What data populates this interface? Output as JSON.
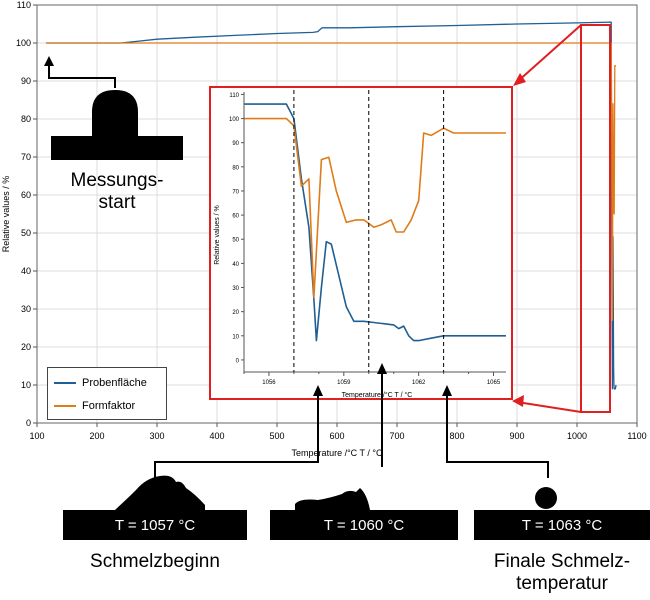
{
  "chart_data": [
    {
      "type": "line",
      "xlabel": "Temperature /°C T / °C",
      "ylabel": "Relative values / %",
      "xlim": [
        100,
        1100
      ],
      "ylim": [
        0,
        110
      ],
      "x_ticks": [
        100,
        200,
        300,
        400,
        500,
        600,
        700,
        800,
        900,
        1000,
        1100
      ],
      "y_ticks": [
        0,
        10,
        20,
        30,
        40,
        50,
        60,
        70,
        80,
        90,
        100,
        110
      ],
      "grid": true,
      "legend_position": "bottom-left",
      "series": [
        {
          "name": "Probenfläche",
          "color": "#1f5f94",
          "x": [
            115,
            240,
            270,
            300,
            360,
            430,
            500,
            560,
            568,
            575,
            620,
            700,
            800,
            900,
            1000,
            1057,
            1058,
            1059,
            1060,
            1061,
            1061.5,
            1062,
            1063,
            1064,
            1065
          ],
          "y": [
            100,
            100,
            100.5,
            101,
            101.5,
            102,
            102.5,
            102.8,
            103,
            104,
            104,
            104.3,
            104.6,
            105,
            105.3,
            105.5,
            45,
            9,
            49,
            15,
            10,
            9,
            9,
            9,
            10
          ]
        },
        {
          "name": "Formfaktor",
          "color": "#e07b1a",
          "x": [
            115,
            200,
            300,
            400,
            500,
            600,
            700,
            800,
            900,
            1000,
            1057,
            1058,
            1059,
            1060,
            1061,
            1062,
            1063,
            1064,
            1065
          ],
          "y": [
            100,
            100,
            100,
            100,
            100,
            100,
            100,
            100,
            100,
            100,
            100,
            73,
            27,
            84,
            56,
            55,
            94,
            94,
            94
          ]
        }
      ]
    },
    {
      "type": "line",
      "xlabel": "Temperature /°C T / °C",
      "ylabel": "Relative values / %",
      "xlim": [
        1055,
        1065.5
      ],
      "ylim": [
        -5,
        111
      ],
      "x_ticks": [
        1056,
        1059,
        1062,
        1065
      ],
      "y_ticks": [
        0,
        10,
        20,
        30,
        40,
        50,
        60,
        70,
        80,
        90,
        100,
        110
      ],
      "grid": false,
      "vlines": [
        1057,
        1060,
        1063
      ],
      "series": [
        {
          "name": "Probenfläche",
          "color": "#1f5f94",
          "x": [
            1055,
            1056.7,
            1057.0,
            1057.3,
            1057.6,
            1057.8,
            1057.9,
            1058.1,
            1058.3,
            1058.5,
            1058.8,
            1059.1,
            1059.4,
            1059.8,
            1060.2,
            1060.6,
            1061.0,
            1061.2,
            1061.4,
            1061.6,
            1061.8,
            1062.0,
            1062.5,
            1063.0,
            1064.0,
            1065.5
          ],
          "y": [
            106,
            106,
            100,
            75,
            55,
            25,
            8,
            30,
            49,
            48,
            35,
            22,
            16,
            16,
            15.5,
            15,
            14.5,
            13,
            14,
            10,
            8,
            8,
            9,
            10,
            10,
            10
          ]
        },
        {
          "name": "Formfaktor",
          "color": "#e07b1a",
          "x": [
            1055,
            1056.7,
            1057.0,
            1057.3,
            1057.6,
            1057.8,
            1058.1,
            1058.4,
            1058.7,
            1059.1,
            1059.5,
            1059.8,
            1060.2,
            1060.5,
            1060.9,
            1061.1,
            1061.4,
            1061.7,
            1062.0,
            1062.2,
            1062.5,
            1063.0,
            1063.4,
            1064.0,
            1065.5
          ],
          "y": [
            100,
            100,
            97,
            72,
            75,
            26,
            83,
            84,
            70,
            57,
            58,
            58,
            55,
            56,
            58,
            53,
            53,
            58,
            66,
            94,
            93,
            96,
            94,
            94,
            94
          ]
        }
      ]
    }
  ],
  "annotations": {
    "start_label": "Messungs-\nstart",
    "snapshots": [
      {
        "label": "T = 1057 °C",
        "caption": "Schmelzbeginn"
      },
      {
        "label": "T = 1060 °C",
        "caption": ""
      },
      {
        "label": "T = 1063 °C",
        "caption": "Finale Schmelz-\ntemperatur"
      }
    ]
  },
  "colors": {
    "zoom_box": "#e02020",
    "axis": "#555555",
    "grid": "#dcdcdc"
  }
}
